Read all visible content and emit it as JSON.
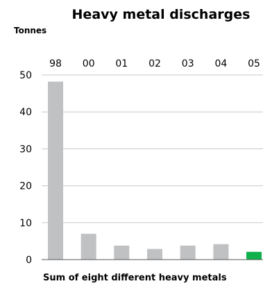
{
  "chart_data": {
    "type": "bar",
    "title": "Heavy metal discharges",
    "unit_label": "Tonnes",
    "categories": [
      "98",
      "00",
      "01",
      "02",
      "03",
      "04",
      "05"
    ],
    "values": [
      48.2,
      7.0,
      3.8,
      2.9,
      3.8,
      4.2,
      2.1
    ],
    "highlight_index": 6,
    "ylim": [
      0,
      50
    ],
    "yticks": [
      0,
      10,
      20,
      30,
      40,
      50
    ],
    "grid": true,
    "footnote": "Sum of eight different heavy metals",
    "colors": {
      "bar": "#c0c1c3",
      "highlight": "#10b04c",
      "grid": "#c8c8c8",
      "axis": "#555555"
    }
  }
}
